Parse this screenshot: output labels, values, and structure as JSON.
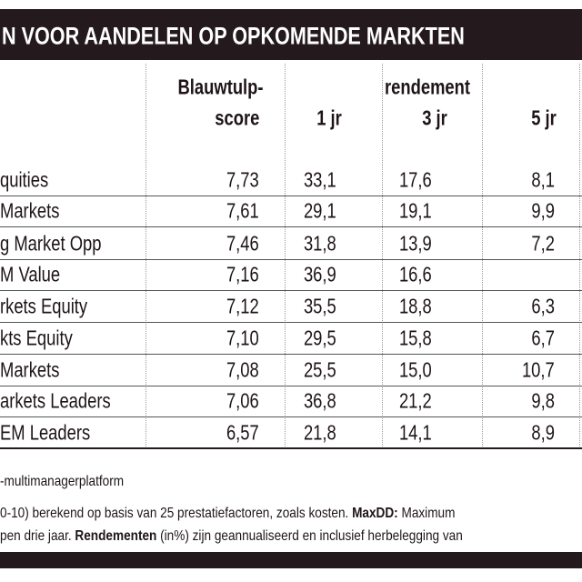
{
  "header": {
    "title": "N VOOR AANDELEN OP OPKOMENDE MARKTEN"
  },
  "table": {
    "columns": {
      "score_line1": "Blauwtulp-",
      "score_line2": "score",
      "group": "rendement",
      "r1": "1 jr",
      "r3": "3 jr",
      "r5": "5 jr"
    },
    "rows": [
      {
        "name": "quities",
        "score": "7,73",
        "r1": "33,1",
        "r3": "17,6",
        "r5": "8,1"
      },
      {
        "name": "Markets",
        "score": "7,61",
        "r1": "29,1",
        "r3": "19,1",
        "r5": "9,9"
      },
      {
        "name": "g Market Opp",
        "score": "7,46",
        "r1": "31,8",
        "r3": "13,9",
        "r5": "7,2"
      },
      {
        "name": "M Value",
        "score": "7,16",
        "r1": "36,9",
        "r3": "16,6"
      },
      {
        "name": "rkets Equity",
        "score": "7,12",
        "r1": "35,5",
        "r3": "18,8",
        "r5": "6,3"
      },
      {
        "name": "kts Equity",
        "score": "7,10",
        "r1": "29,5",
        "r3": "15,8",
        "r5": "6,7"
      },
      {
        "name": "Markets",
        "score": "7,08",
        "r1": "25,5",
        "r3": "15,0",
        "r5": "10,7"
      },
      {
        "name": "arkets Leaders",
        "score": "7,06",
        "r1": "36,8",
        "r3": "21,2",
        "r5": "9,8"
      },
      {
        "name": "EM Leaders",
        "score": "6,57",
        "r1": "21,8",
        "r3": "14,1",
        "r5": "8,9"
      }
    ]
  },
  "footer": {
    "lines": [
      [
        {
          "text": "-multimanagerplatform"
        }
      ],
      [
        {
          "text": "0-10) berekend op basis van 25 prestatiefactoren, zoals kosten. "
        },
        {
          "text": "MaxDD:",
          "bold": true
        },
        {
          "text": " Maximum"
        }
      ],
      [
        {
          "text": "pen drie jaar. "
        },
        {
          "text": "Rendementen",
          "bold": true
        },
        {
          "text": " (in%) zijn geannualiseerd en inclusief herbelegging van"
        }
      ]
    ]
  }
}
